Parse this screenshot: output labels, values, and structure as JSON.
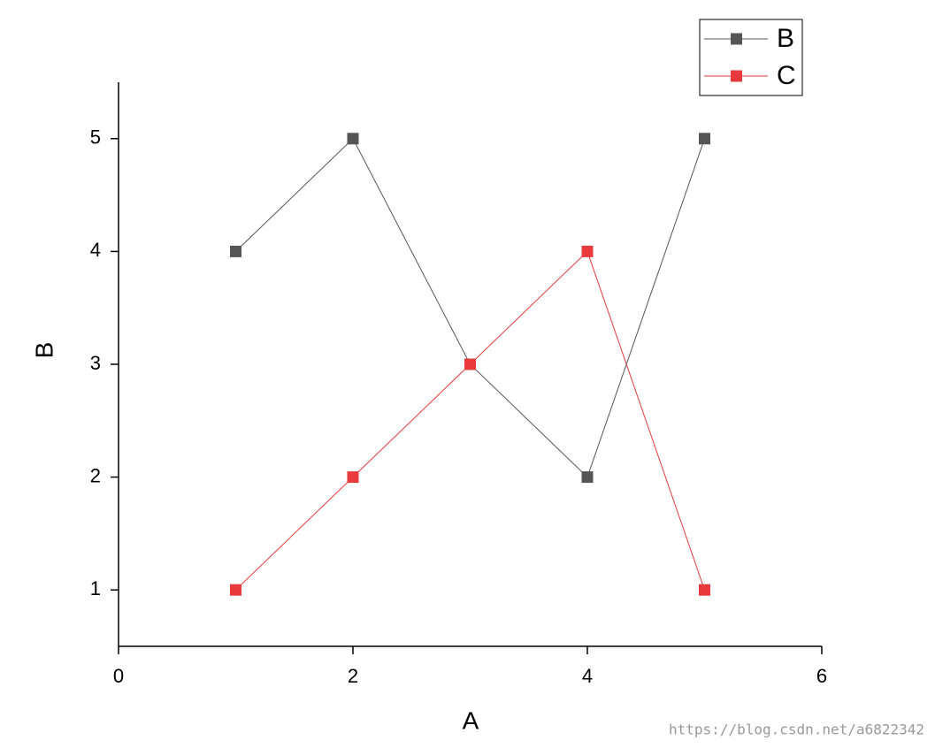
{
  "chart_data": {
    "type": "line",
    "x_label": "A",
    "y_label": "B",
    "x": [
      1,
      2,
      3,
      4,
      5
    ],
    "series": [
      {
        "name": "B",
        "color": "#555555",
        "values": [
          4,
          5,
          3,
          2,
          5
        ]
      },
      {
        "name": "C",
        "color": "#e8393d",
        "values": [
          1,
          2,
          3,
          4,
          1
        ]
      }
    ],
    "xlim": [
      0,
      6
    ],
    "xticks": [
      0,
      2,
      4,
      6
    ],
    "ylim": [
      0.5,
      5.5
    ],
    "yticks": [
      1,
      2,
      3,
      4,
      5
    ],
    "grid": false,
    "legend": "top-right",
    "watermark": "https://blog.csdn.net/a6822342"
  }
}
